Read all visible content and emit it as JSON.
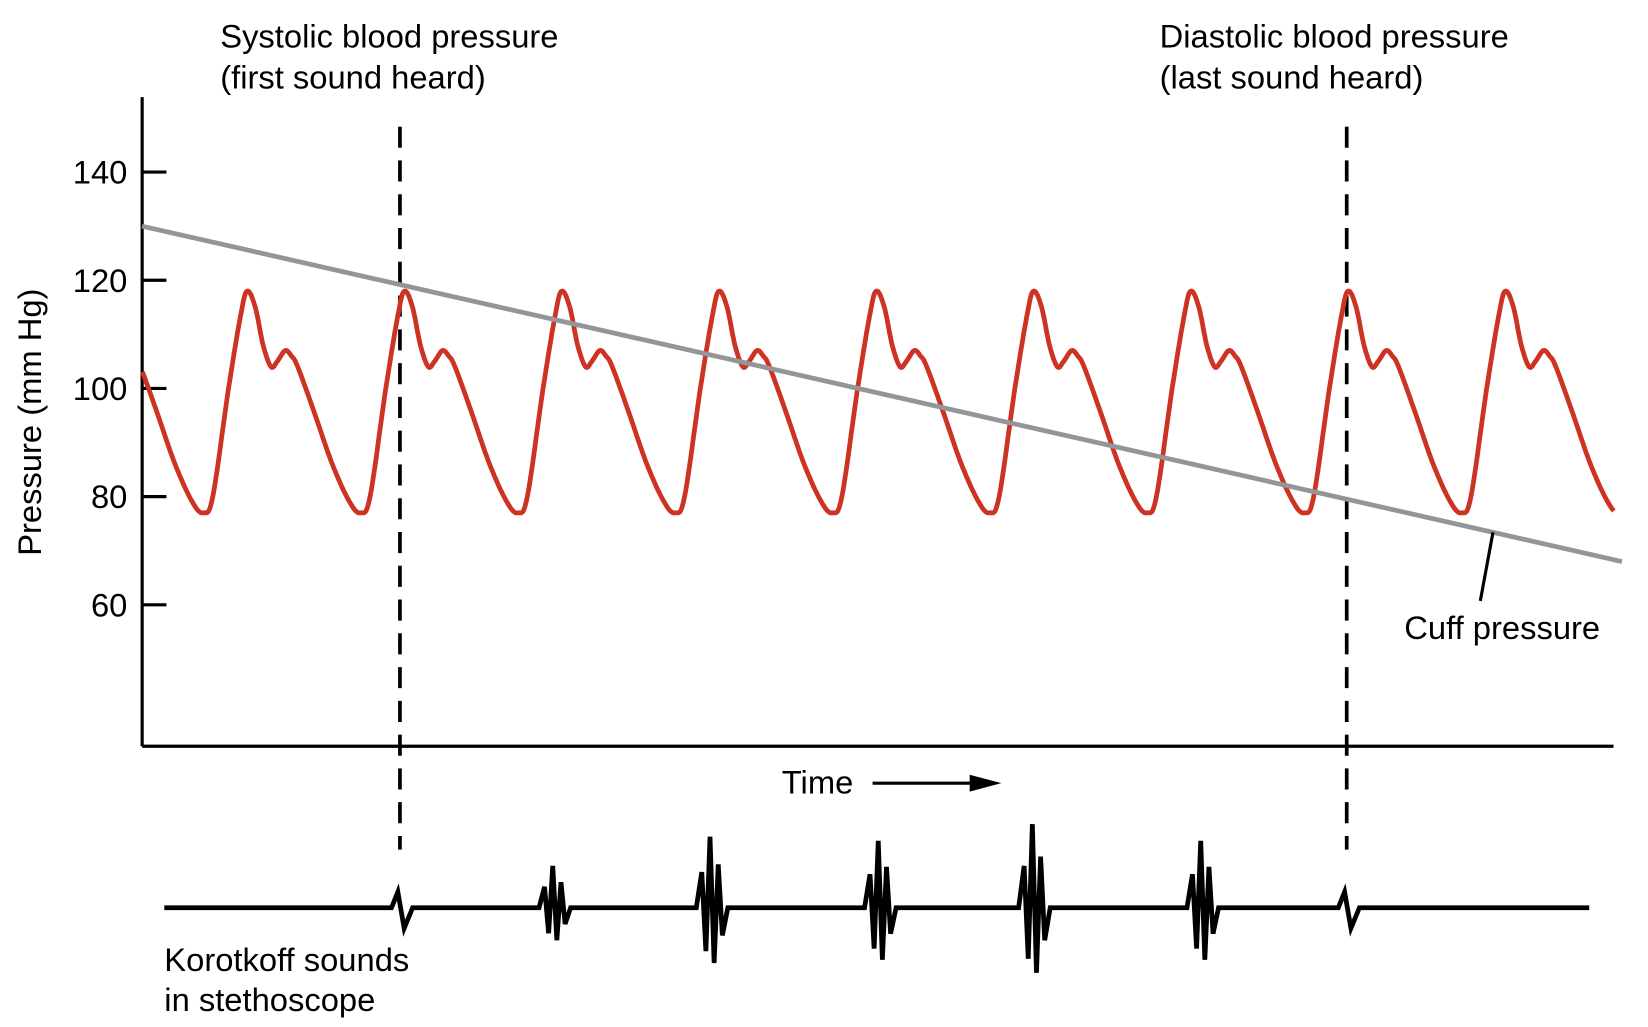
{
  "chart_data": {
    "type": "line",
    "ylabel": "Pressure (mm Hg)",
    "xlabel": "Time",
    "yticks": [
      140,
      120,
      100,
      80,
      60
    ],
    "ylim": [
      34,
      154
    ],
    "xlim": [
      -0.39,
      8.97
    ],
    "grid": false,
    "colors": {
      "arterial": "#cc3322",
      "cuff": "#939598",
      "sounds": "#000000"
    },
    "arterial_pressure": {
      "cycle_template": [
        [
          0,
          77
        ],
        [
          0.06,
          80
        ],
        [
          0.16,
          100
        ],
        [
          0.24,
          114
        ],
        [
          0.28,
          118
        ],
        [
          0.33,
          115
        ],
        [
          0.38,
          108
        ],
        [
          0.43,
          104
        ],
        [
          0.47,
          105
        ],
        [
          0.52,
          107
        ],
        [
          0.56,
          106
        ],
        [
          0.6,
          104
        ],
        [
          0.7,
          96
        ],
        [
          0.82,
          86
        ],
        [
          0.93,
          79
        ],
        [
          1.0,
          77
        ]
      ],
      "t_start": -0.39,
      "t_end": 8.97
    },
    "cuff_pressure": {
      "label": "Cuff pressure",
      "points": [
        [
          -0.39,
          130
        ],
        [
          9.02,
          68
        ]
      ],
      "label_point": [
        8.2,
        73
      ]
    },
    "markers": [
      {
        "t": 1.25,
        "label_line1": "Systolic blood pressure",
        "label_line2": "(first sound heard)"
      },
      {
        "t": 7.27,
        "label_line1": "Diastolic blood pressure",
        "label_line2": "(last sound heard)"
      }
    ],
    "korotkoff": {
      "label_line1": "Korotkoff sounds",
      "label_line2": "in stethoscope",
      "bursts": [
        {
          "t": 1.25,
          "amplitude": 0.17
        },
        {
          "t": 2.23,
          "amplitude": 0.5
        },
        {
          "t": 3.23,
          "amplitude": 0.85
        },
        {
          "t": 4.3,
          "amplitude": 0.8
        },
        {
          "t": 5.28,
          "amplitude": 1.0
        },
        {
          "t": 6.35,
          "amplitude": 0.8
        },
        {
          "t": 7.27,
          "amplitude": 0.17
        }
      ]
    }
  }
}
